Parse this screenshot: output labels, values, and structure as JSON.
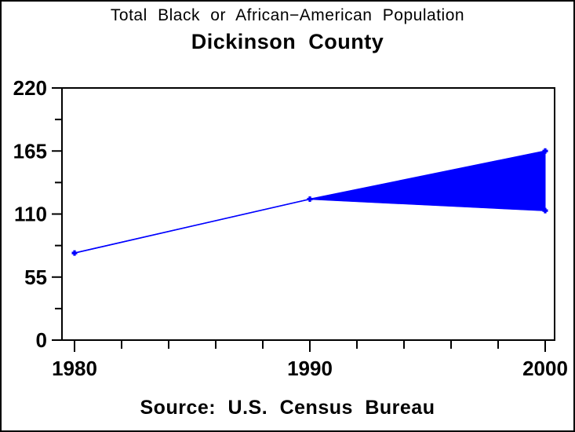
{
  "page": {
    "title_line1": "Total Black or African−American Population",
    "title_line2": "Dickinson County",
    "source_note": "Source: U.S. Census Bureau"
  },
  "chart_data": {
    "type": "area",
    "subtype": "band-between-two-lines (range wedge from 1990 to 2000)",
    "title": "Total Black or African−American Population",
    "subtitle": "Dickinson County",
    "footnote": "Source: U.S. Census Bureau",
    "x": [
      1980,
      1990,
      2000
    ],
    "series": [
      {
        "name": "upper-bound",
        "values": [
          76,
          123,
          165
        ]
      },
      {
        "name": "lower-bound",
        "values": [
          76,
          123,
          113
        ]
      }
    ],
    "line_color": "#0000ff",
    "fill_color": "#0000ff",
    "frame_color": "#000000",
    "grid": false,
    "legend_position": "none",
    "axes": {
      "y": {
        "min": 0,
        "max": 220,
        "major_ticks": [
          0,
          55,
          110,
          165,
          220
        ],
        "labels": [
          "0",
          "55",
          "110",
          "165",
          "220"
        ],
        "minor_ticks": [
          27.5,
          82.5,
          137.5,
          192.5
        ]
      },
      "x": {
        "min": 1980,
        "max": 2000,
        "major_ticks": [
          1980,
          1990,
          2000
        ],
        "labels": [
          "1980",
          "1990",
          "2000"
        ],
        "minor_ticks": [
          1982,
          1984,
          1986,
          1988,
          1992,
          1994,
          1996,
          1998
        ]
      }
    }
  }
}
